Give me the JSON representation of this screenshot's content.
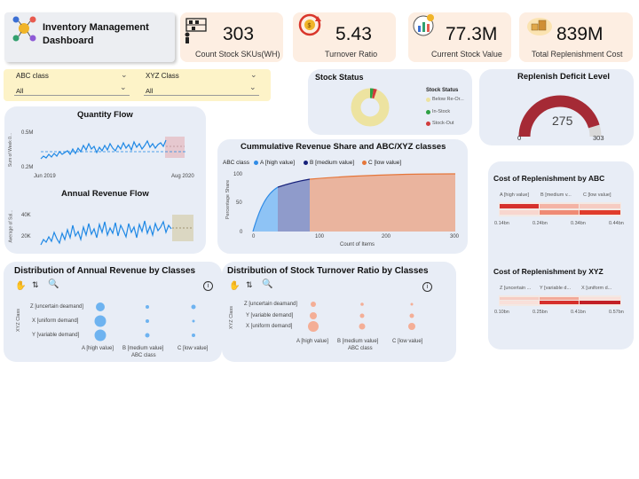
{
  "header": {
    "title_line1": "Inventory Management",
    "title_line2": "Dashboard"
  },
  "kpis": [
    {
      "value": "303",
      "label": "Count Stock SKUs(WH)",
      "icon": "warehouse-icon"
    },
    {
      "value": "5.43",
      "label": "Turnover Ratio",
      "icon": "turnover-cycle-icon"
    },
    {
      "value": "77.3M",
      "label": "Current Stock Value",
      "icon": "value-chart-icon"
    },
    {
      "value": "839M",
      "label": "Total Replenishment Cost",
      "icon": "boxes-icon"
    }
  ],
  "filters": {
    "abc": {
      "label": "ABC class",
      "value": "All"
    },
    "xyz": {
      "label": "XYZ Class",
      "value": "All"
    }
  },
  "stock_status": {
    "title": "Stock Status",
    "legend_title": "Stock Status",
    "items": [
      {
        "label": "Below Re-Or...",
        "color": "#ede3a0",
        "share": 0.97
      },
      {
        "label": "In-Stock",
        "color": "#2ea043",
        "share": 0.015
      },
      {
        "label": "Stock-Out",
        "color": "#d13b3b",
        "share": 0.015
      }
    ]
  },
  "replenish": {
    "title": "Replenish Deficit Level",
    "value": "275",
    "min": "0",
    "max": "303",
    "fraction": 0.908
  },
  "quantity_flow": {
    "title": "Quantity Flow",
    "ylabel": "Sum of Week 0...",
    "yticks": [
      "0.5M",
      "0.2M"
    ],
    "xticks": [
      "Jun 2019",
      "Aug 2020"
    ]
  },
  "annual_flow": {
    "title": "Annual Revenue Flow",
    "ylabel": "Average of Sal...",
    "yticks": [
      "40K",
      "20K"
    ]
  },
  "cumulative": {
    "title": "Cummulative Revenue Share and ABC/XYZ classes",
    "legend_title": "ABC class",
    "legend": [
      {
        "label": "A [high value]",
        "color": "#2f8be6"
      },
      {
        "label": "B [medium value]",
        "color": "#16207a"
      },
      {
        "label": "C [low value]",
        "color": "#e5763a"
      }
    ],
    "ylabel": "Percentage Share",
    "xlabel": "Count of Items",
    "yticks": [
      "100",
      "50",
      "0"
    ],
    "xticks": [
      "0",
      "100",
      "200",
      "300"
    ]
  },
  "dist_revenue": {
    "title": "Distribution of Annual Revenue by Classes",
    "ylabel": "XYZ Class",
    "xlabel": "ABC class",
    "rows": [
      "Z [uncertain deamand]",
      "X [uniform demand]",
      "Y [variable demand]"
    ],
    "cols": [
      "A [high value]",
      "B [medium value]",
      "C [low value]"
    ]
  },
  "dist_turnover": {
    "title": "Distribution of Stock Turnover Ratio by Classes",
    "ylabel": "XYZ Class",
    "xlabel": "ABC class",
    "rows": [
      "Z [uncertain deamand]",
      "Y [variable demand]",
      "X [uniform demand]"
    ],
    "cols": [
      "A [high value]",
      "B [medium value]",
      "C [low value]"
    ]
  },
  "cost_abc": {
    "title": "Cost of Replenishment by ABC",
    "headers": [
      "A [high value]",
      "B [medium v...",
      "C [low value]"
    ],
    "ticks": [
      "0.14bn",
      "0.24bn",
      "0.34bn",
      "0.44bn"
    ]
  },
  "cost_xyz": {
    "title": "Cost of Replenishment by XYZ",
    "headers": [
      "Z [uncertain ...",
      "Y [variable d...",
      "X [uniform d..."
    ],
    "ticks": [
      "0.10bn",
      "0.25bn",
      "0.41bn",
      "0.57bn"
    ]
  },
  "info_icon": "i",
  "colors": {
    "kpi_bg": "#fdeee2",
    "panel_bg": "#e8edf6",
    "slicer_bg": "#fdf3c8",
    "line_blue": "#1e88e5",
    "gauge_red": "#a52a35"
  }
}
